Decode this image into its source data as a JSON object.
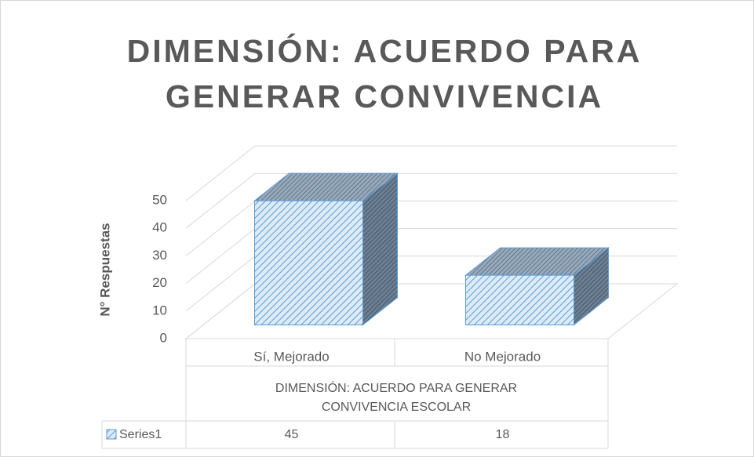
{
  "chart_data": {
    "type": "bar3d",
    "title": "DIMENSIÓN: ACUERDO PARA GENERAR CONVIVENCIA",
    "ylabel": "N° Respuestas",
    "xlabel": "DIMENSIÓN: ACUERDO PARA GENERAR CONVIVENCIA ESCOLAR",
    "categories": [
      "Sí, Mejorado",
      "No Mejorado"
    ],
    "series": [
      {
        "name": "Series1",
        "color": "#5b9bd5",
        "values": [
          45,
          18
        ]
      }
    ],
    "ylim": [
      0,
      50
    ],
    "yticks": [
      0,
      10,
      20,
      30,
      40,
      50
    ],
    "grid": true
  }
}
